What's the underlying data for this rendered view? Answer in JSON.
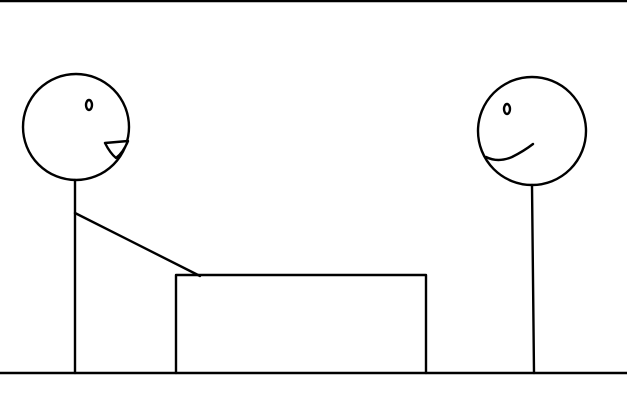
{
  "scene": {
    "background_color": "#ffffff",
    "ink_color": "#000000",
    "figures": [
      {
        "role": "left-figure",
        "expression": "open-mouth-smile",
        "pose": "arm-resting-on-box"
      },
      {
        "role": "right-figure",
        "expression": "smile",
        "pose": "standing"
      }
    ],
    "objects": [
      "box",
      "ground-line"
    ]
  }
}
